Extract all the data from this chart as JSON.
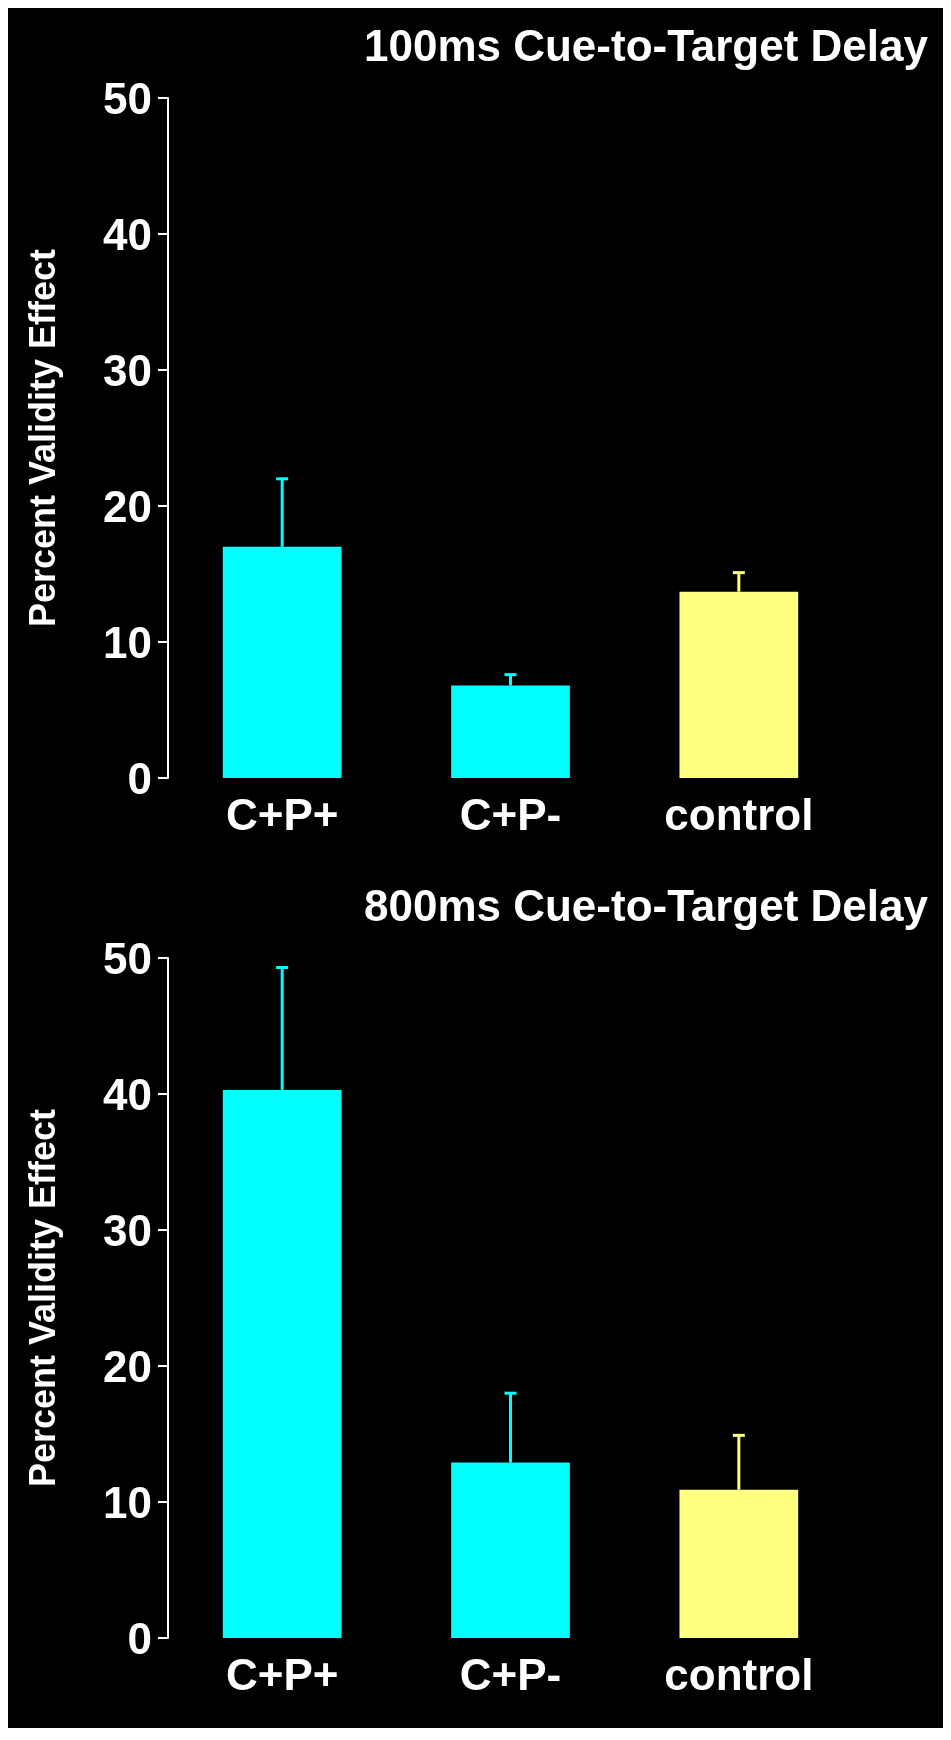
{
  "chart_data": [
    {
      "type": "bar",
      "title": "100ms Cue-to-Target Delay",
      "ylabel": "Percent Validity Effect",
      "categories": [
        "C+P+",
        "C+P-",
        "control"
      ],
      "values": [
        17,
        6.8,
        13.7
      ],
      "colors": [
        "#00ffff",
        "#00ffff",
        "#ffff80"
      ],
      "errors": [
        [
          17,
          22
        ],
        [
          6.8,
          7.6
        ],
        [
          13.7,
          15.1
        ]
      ],
      "ylim": [
        0,
        50
      ],
      "yticks": [
        0,
        10,
        20,
        30,
        40,
        50
      ],
      "grid": false
    },
    {
      "type": "bar",
      "title": "800ms Cue-to-Target Delay",
      "ylabel": "Percent Validity Effect",
      "categories": [
        "C+P+",
        "C+P-",
        "control"
      ],
      "values": [
        40.3,
        12.9,
        10.9
      ],
      "colors": [
        "#00ffff",
        "#00ffff",
        "#ffff80"
      ],
      "errors": [
        [
          40.3,
          49.3
        ],
        [
          12.9,
          18
        ],
        [
          10.9,
          14.9
        ]
      ],
      "ylim": [
        0,
        50
      ],
      "yticks": [
        0,
        10,
        20,
        30,
        40,
        50
      ],
      "grid": false
    }
  ]
}
